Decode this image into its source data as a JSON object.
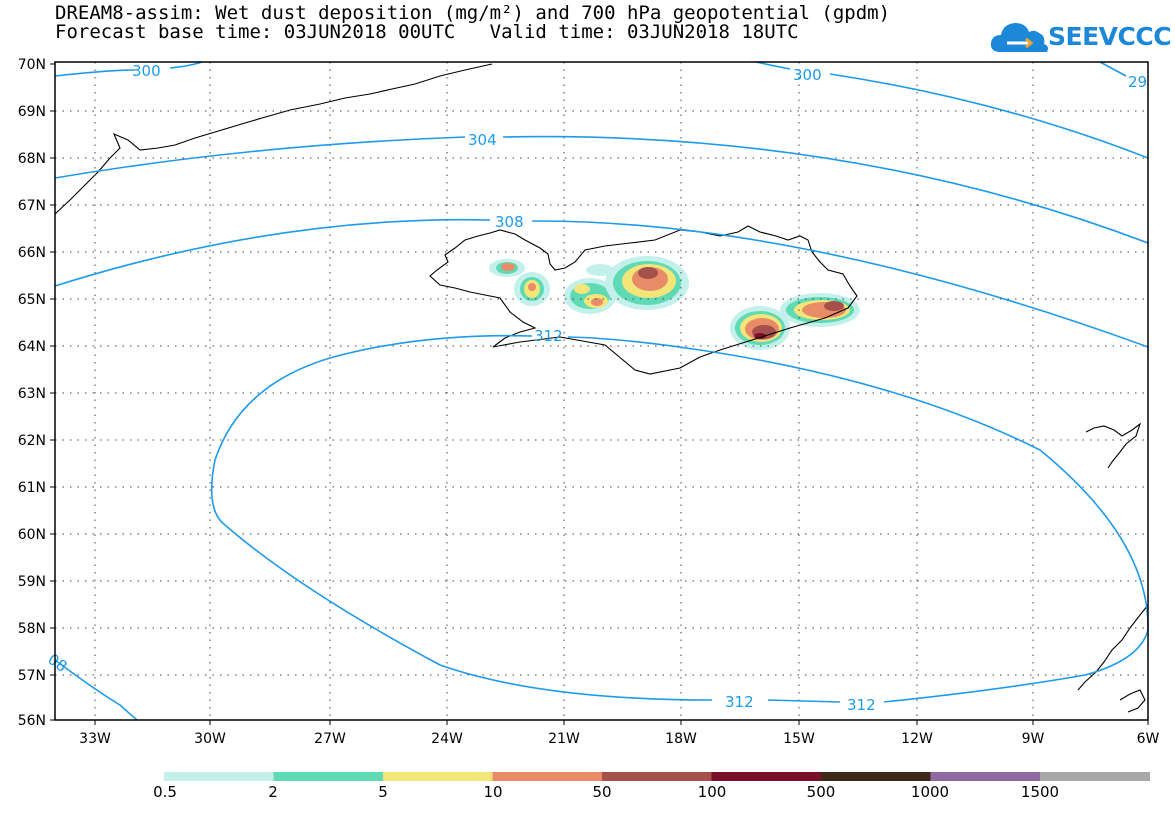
{
  "title": {
    "line1": "DREAM8-assim: Wet dust deposition (mg/m²) and 700 hPa geopotential (gpdm)",
    "line2": "Forecast base time: 03JUN2018 00UTC   Valid time: 03JUN2018 18UTC"
  },
  "logo": {
    "text": "SEEVCCC",
    "icon": "cloud-icon",
    "color": "#1e88d8"
  },
  "map": {
    "lat_labels": [
      "70N",
      "69N",
      "68N",
      "67N",
      "66N",
      "65N",
      "64N",
      "63N",
      "62N",
      "61N",
      "60N",
      "59N",
      "58N",
      "57N",
      "56N"
    ],
    "lon_labels": [
      "33W",
      "30W",
      "27W",
      "24W",
      "21W",
      "18W",
      "15W",
      "12W",
      "9W",
      "6W"
    ],
    "extent": {
      "lat": [
        56,
        70
      ],
      "lon": [
        -34.3,
        -6
      ]
    },
    "contour_color": "#1e9be8",
    "contour_labels": [
      {
        "id": "c300a",
        "text": "300"
      },
      {
        "id": "c300b",
        "text": "300"
      },
      {
        "id": "c29",
        "text": "29"
      },
      {
        "id": "c304",
        "text": "304"
      },
      {
        "id": "c308a",
        "text": "308"
      },
      {
        "id": "c312a",
        "text": "312"
      },
      {
        "id": "c308b",
        "text": "08"
      },
      {
        "id": "c312b",
        "text": "312"
      },
      {
        "id": "c312c",
        "text": "312"
      }
    ]
  },
  "colorbar": {
    "colors": [
      "#c4f0ec",
      "#5fdab4",
      "#f2e57a",
      "#e88c68",
      "#a5504a",
      "#7a1028",
      "#3e2818",
      "#8e6aa0",
      "#a8a8a8"
    ],
    "labels": [
      "0.5",
      "2",
      "5",
      "10",
      "50",
      "100",
      "500",
      "1000",
      "1500"
    ]
  }
}
